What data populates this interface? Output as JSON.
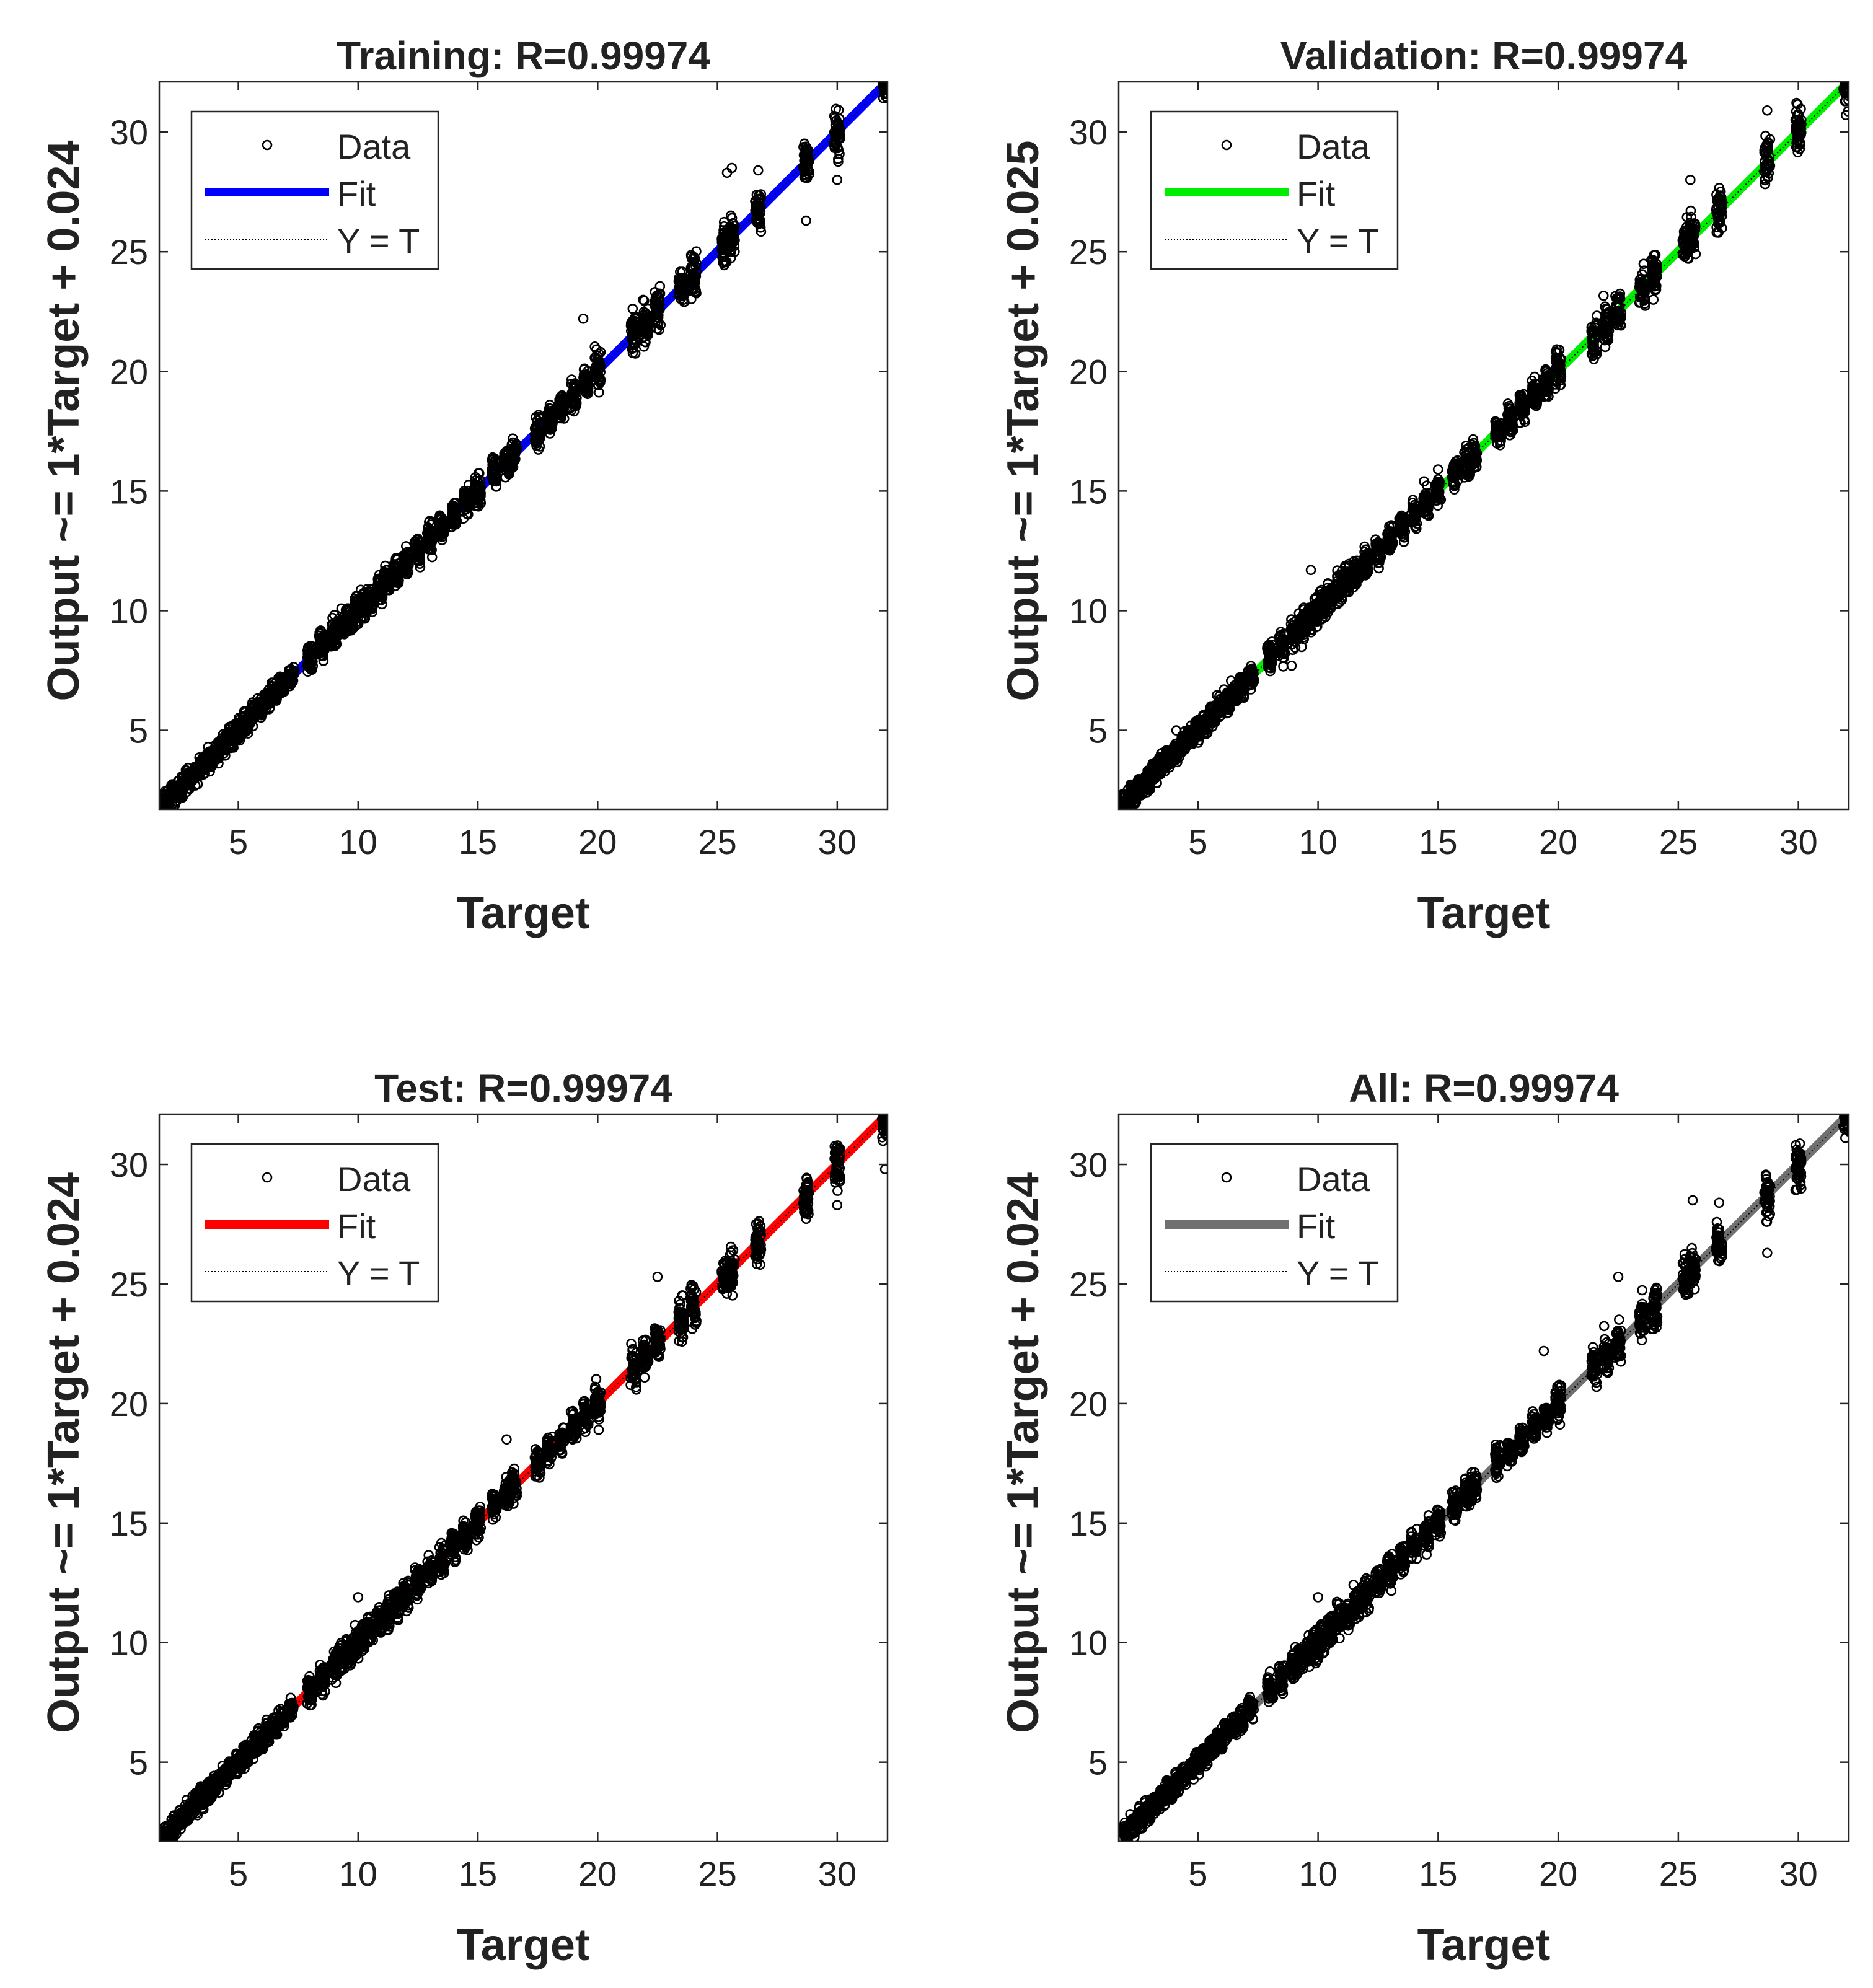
{
  "chart_data": [
    {
      "type": "scatter",
      "title": "Training: R=0.99974",
      "xlabel": "Target",
      "ylabel": "Output ~= 1*Target + 0.024",
      "xlim": [
        1.7,
        32.1
      ],
      "ylim": [
        1.7,
        32.1
      ],
      "xticks": [
        5,
        10,
        15,
        20,
        25,
        30
      ],
      "yticks": [
        5,
        10,
        15,
        20,
        25,
        30
      ],
      "fit": {
        "slope": 1,
        "intercept": 0.024,
        "color": "#0000ff"
      },
      "legend": {
        "position": "top-left",
        "entries": [
          "Data",
          "Fit",
          "Y = T"
        ]
      },
      "target_levels": [
        2,
        2.3,
        2.6,
        2.9,
        3.2,
        3.5,
        3.8,
        4.1,
        4.4,
        4.7,
        5,
        5.3,
        5.6,
        5.9,
        6.2,
        6.5,
        6.8,
        7.2,
        8,
        8.5,
        9,
        9.3,
        9.6,
        9.9,
        10.2,
        10.5,
        10.9,
        11.2,
        11.6,
        12,
        12.5,
        13,
        13.5,
        14,
        14.5,
        15,
        15.7,
        16.2,
        16.5,
        17.5,
        18,
        18.5,
        19,
        19.5,
        20,
        21.5,
        22,
        22.5,
        23.5,
        24,
        25.3,
        25.6,
        26.7,
        28.7,
        30,
        32
      ],
      "outliers": [
        [
          26.7,
          28.4
        ],
        [
          28.7,
          26.3
        ],
        [
          19.4,
          22.2
        ],
        [
          25.4,
          28.3
        ],
        [
          25.6,
          28.5
        ],
        [
          30,
          28.0
        ]
      ]
    },
    {
      "type": "scatter",
      "title": "Validation: R=0.99974",
      "xlabel": "Target",
      "ylabel": "Output ~= 1*Target + 0.025",
      "xlim": [
        1.7,
        32.1
      ],
      "ylim": [
        1.7,
        32.1
      ],
      "xticks": [
        5,
        10,
        15,
        20,
        25,
        30
      ],
      "yticks": [
        5,
        10,
        15,
        20,
        25,
        30
      ],
      "fit": {
        "slope": 1,
        "intercept": 0.025,
        "color": "#00ee00"
      },
      "legend": {
        "position": "top-left",
        "entries": [
          "Data",
          "Fit",
          "Y = T"
        ]
      },
      "target_levels": [
        2,
        2.3,
        2.6,
        2.9,
        3.2,
        3.5,
        3.8,
        4.1,
        4.4,
        4.7,
        5,
        5.3,
        5.6,
        5.9,
        6.2,
        6.5,
        6.8,
        7.2,
        8,
        8.5,
        9,
        9.3,
        9.6,
        9.9,
        10.2,
        10.5,
        10.9,
        11.2,
        11.6,
        12,
        12.5,
        13,
        13.5,
        14,
        14.5,
        15,
        15.7,
        16.2,
        16.5,
        17.5,
        18,
        18.5,
        19,
        19.5,
        20,
        21.5,
        22,
        22.5,
        23.5,
        24,
        25.3,
        25.6,
        26.7,
        28.7,
        30,
        32
      ],
      "outliers": [
        [
          8.9,
          7.7
        ],
        [
          25.5,
          28.0
        ],
        [
          9.7,
          11.7
        ],
        [
          4.1,
          5.0
        ],
        [
          28.7,
          30.9
        ]
      ]
    },
    {
      "type": "scatter",
      "title": "Test: R=0.99974",
      "xlabel": "Target",
      "ylabel": "Output ~= 1*Target + 0.024",
      "xlim": [
        1.7,
        32.1
      ],
      "ylim": [
        1.7,
        32.1
      ],
      "xticks": [
        5,
        10,
        15,
        20,
        25,
        30
      ],
      "yticks": [
        5,
        10,
        15,
        20,
        25,
        30
      ],
      "fit": {
        "slope": 1,
        "intercept": 0.024,
        "color": "#ff0000"
      },
      "legend": {
        "position": "top-left",
        "entries": [
          "Data",
          "Fit",
          "Y = T"
        ]
      },
      "target_levels": [
        2,
        2.3,
        2.6,
        2.9,
        3.2,
        3.5,
        3.8,
        4.1,
        4.4,
        4.7,
        5,
        5.3,
        5.6,
        5.9,
        6.2,
        6.5,
        6.8,
        7.2,
        8,
        8.5,
        9,
        9.3,
        9.6,
        9.9,
        10.2,
        10.5,
        10.9,
        11.2,
        11.6,
        12,
        12.5,
        13,
        13.5,
        14,
        14.5,
        15,
        15.7,
        16.2,
        16.5,
        17.5,
        18,
        18.5,
        19,
        19.5,
        20,
        21.5,
        22,
        22.5,
        23.5,
        24,
        25.3,
        25.6,
        26.7,
        28.7,
        30,
        32
      ],
      "outliers": [
        [
          22.5,
          25.3
        ],
        [
          16.2,
          18.5
        ],
        [
          10,
          11.9
        ],
        [
          32,
          29.8
        ],
        [
          30,
          28.3
        ]
      ]
    },
    {
      "type": "scatter",
      "title": "All: R=0.99974",
      "xlabel": "Target",
      "ylabel": "Output ~= 1*Target + 0.024",
      "xlim": [
        1.7,
        32.1
      ],
      "ylim": [
        1.7,
        32.1
      ],
      "xticks": [
        5,
        10,
        15,
        20,
        25,
        30
      ],
      "yticks": [
        5,
        10,
        15,
        20,
        25,
        30
      ],
      "fit": {
        "slope": 1,
        "intercept": 0.024,
        "color": "#707070"
      },
      "legend": {
        "position": "top-left",
        "entries": [
          "Data",
          "Fit",
          "Y = T"
        ]
      },
      "target_levels": [
        2,
        2.3,
        2.6,
        2.9,
        3.2,
        3.5,
        3.8,
        4.1,
        4.4,
        4.7,
        5,
        5.3,
        5.6,
        5.9,
        6.2,
        6.5,
        6.8,
        7.2,
        8,
        8.5,
        9,
        9.3,
        9.6,
        9.9,
        10.2,
        10.5,
        10.9,
        11.2,
        11.6,
        12,
        12.5,
        13,
        13.5,
        14,
        14.5,
        15,
        15.7,
        16.2,
        16.5,
        17.5,
        18,
        18.5,
        19,
        19.5,
        20,
        21.5,
        22,
        22.5,
        23.5,
        24,
        25.3,
        25.6,
        26.7,
        28.7,
        30,
        32
      ],
      "outliers": [
        [
          22.5,
          25.3
        ],
        [
          19.4,
          22.2
        ],
        [
          28.7,
          26.3
        ],
        [
          25.6,
          28.5
        ],
        [
          26.7,
          28.4
        ],
        [
          10,
          11.9
        ]
      ]
    }
  ]
}
